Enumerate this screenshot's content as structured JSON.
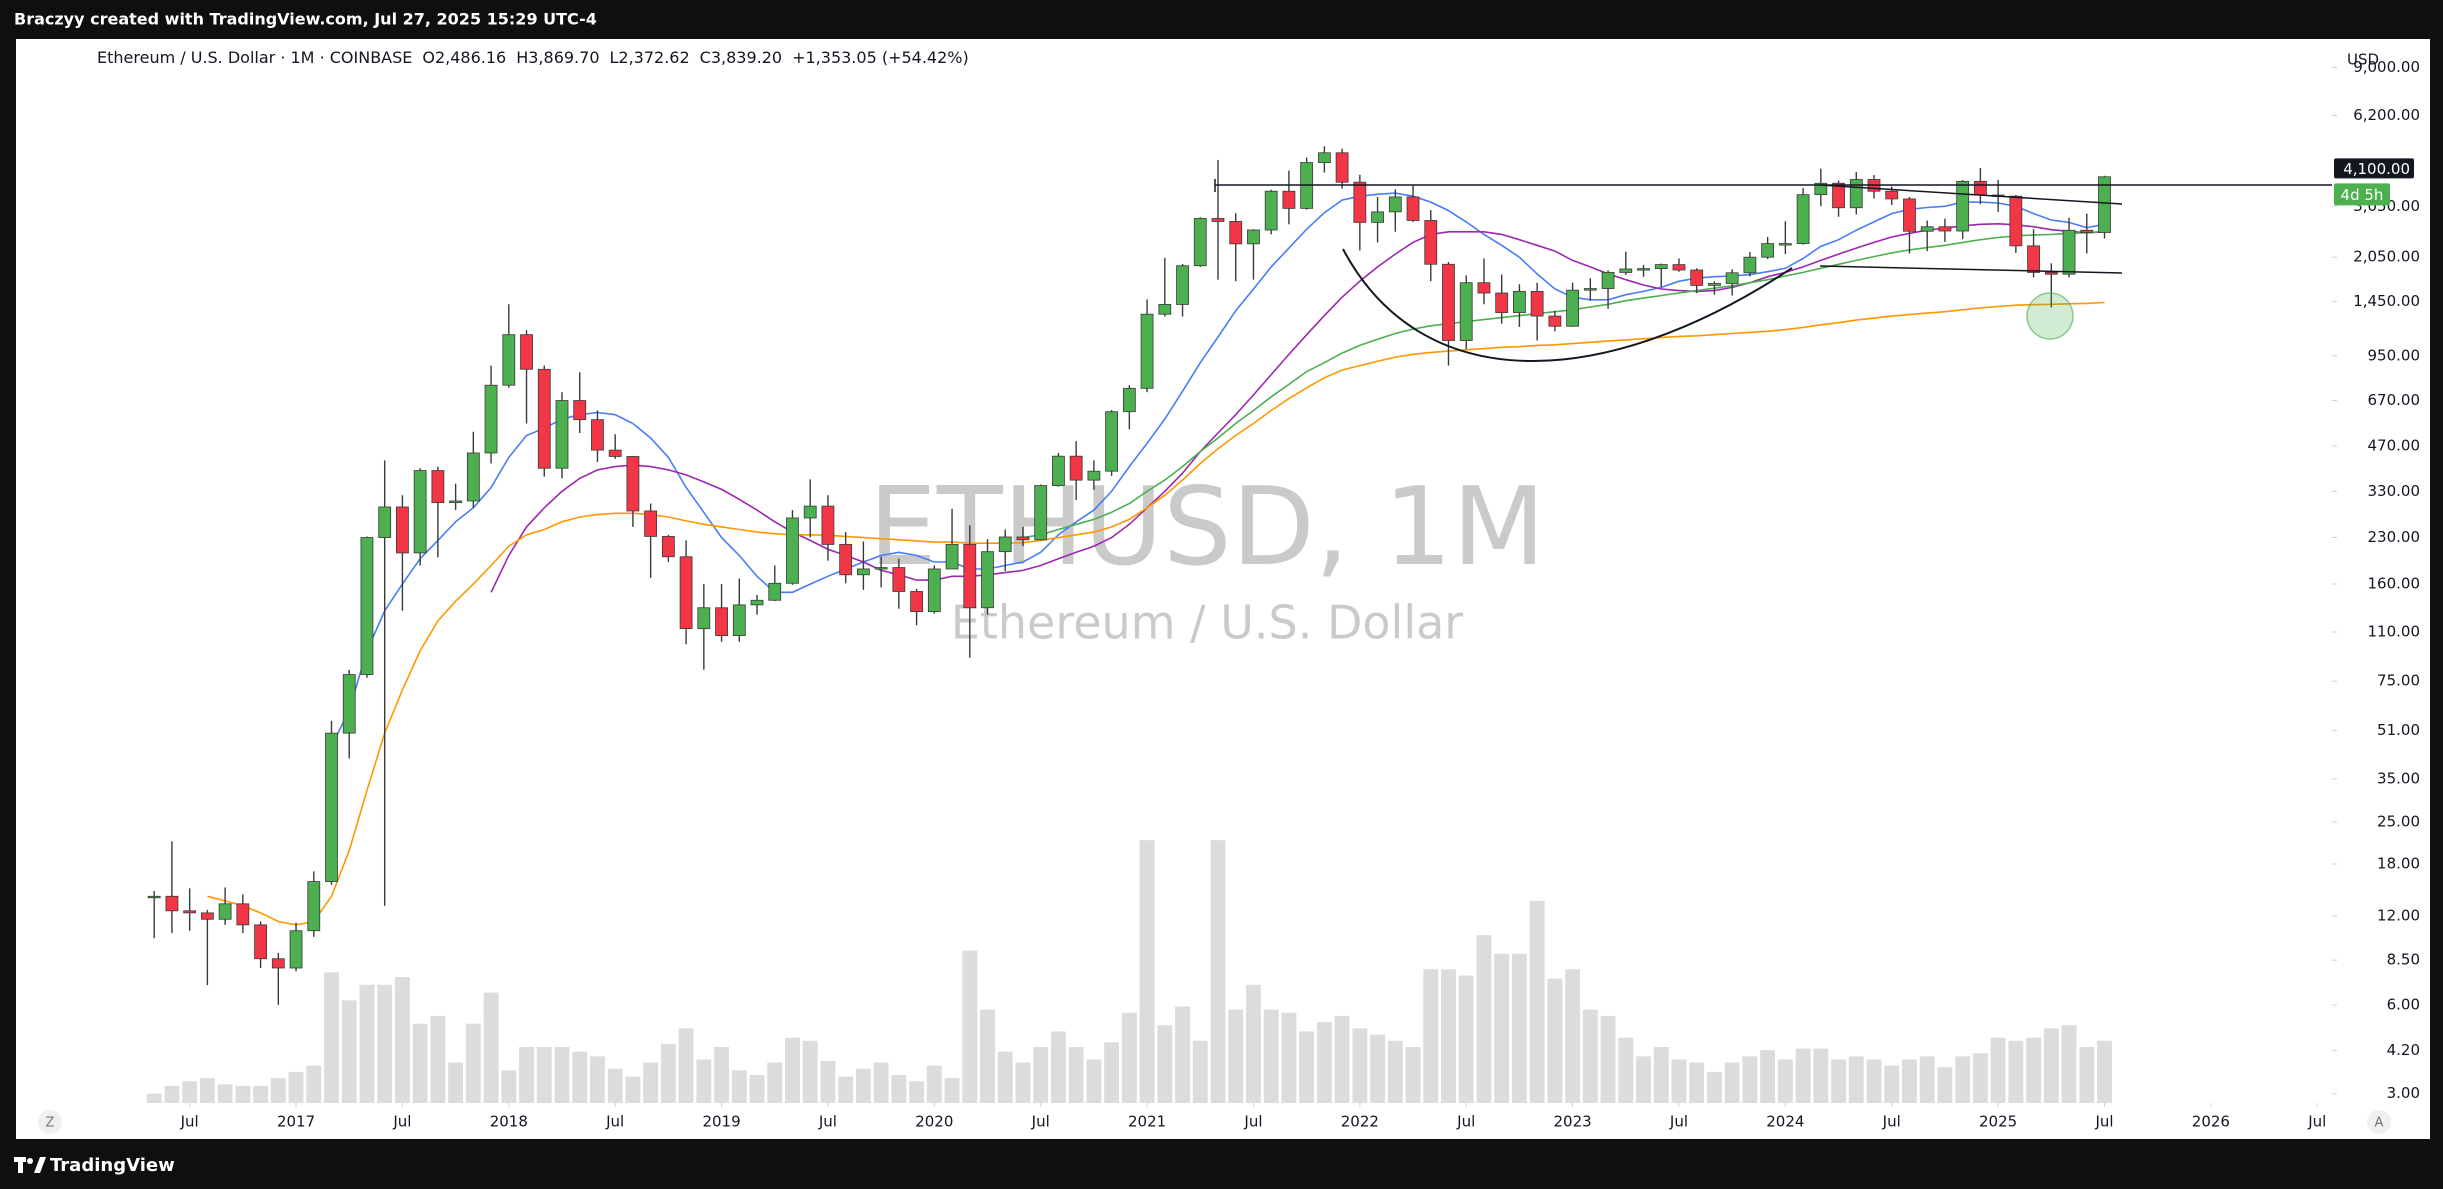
{
  "header": "Braczyy created with TradingView.com, Jul 27, 2025 15:29 UTC-4",
  "footer": "TradingView",
  "buttons": {
    "left": "Z",
    "right": "A"
  },
  "chart_data": {
    "type": "candlestick",
    "log": true,
    "currency": "USD",
    "legend": {
      "symbol": "Ethereum / U.S. Dollar · 1M · COINBASE",
      "open": "O2,486.16",
      "high": "H3,869.70",
      "low": "L2,372.62",
      "close": "C3,839.20",
      "change": "+1,353.05 (+54.42%)"
    },
    "watermark": {
      "symbol": "ETHUSD, 1M",
      "description": "Ethereum / U.S. Dollar"
    },
    "colors": {
      "up": "#4caf50",
      "down": "#f23645",
      "wick": "#3a3a3a",
      "volume": "#dcdcdc"
    },
    "x": [
      "2016-05",
      "2016-06",
      "2016-07",
      "2016-08",
      "2016-09",
      "2016-10",
      "2016-11",
      "2016-12",
      "2017-01",
      "2017-02",
      "2017-03",
      "2017-04",
      "2017-05",
      "2017-06",
      "2017-07",
      "2017-08",
      "2017-09",
      "2017-10",
      "2017-11",
      "2017-12",
      "2018-01",
      "2018-02",
      "2018-03",
      "2018-04",
      "2018-05",
      "2018-06",
      "2018-07",
      "2018-08",
      "2018-09",
      "2018-10",
      "2018-11",
      "2018-12",
      "2019-01",
      "2019-02",
      "2019-03",
      "2019-04",
      "2019-05",
      "2019-06",
      "2019-07",
      "2019-08",
      "2019-09",
      "2019-10",
      "2019-11",
      "2019-12",
      "2020-01",
      "2020-02",
      "2020-03",
      "2020-04",
      "2020-05",
      "2020-06",
      "2020-07",
      "2020-08",
      "2020-09",
      "2020-10",
      "2020-11",
      "2020-12",
      "2021-01",
      "2021-02",
      "2021-03",
      "2021-04",
      "2021-05",
      "2021-06",
      "2021-07",
      "2021-08",
      "2021-09",
      "2021-10",
      "2021-11",
      "2021-12",
      "2022-01",
      "2022-02",
      "2022-03",
      "2022-04",
      "2022-05",
      "2022-06",
      "2022-07",
      "2022-08",
      "2022-09",
      "2022-10",
      "2022-11",
      "2022-12",
      "2023-01",
      "2023-02",
      "2023-03",
      "2023-04",
      "2023-05",
      "2023-06",
      "2023-07",
      "2023-08",
      "2023-09",
      "2023-10",
      "2023-11",
      "2023-12",
      "2024-01",
      "2024-02",
      "2024-03",
      "2024-04",
      "2024-05",
      "2024-06",
      "2024-07",
      "2024-08",
      "2024-09",
      "2024-10",
      "2024-11",
      "2024-12",
      "2025-01",
      "2025-02",
      "2025-03",
      "2025-04",
      "2025-05",
      "2025-06",
      "2025-07"
    ],
    "open": [
      13.9,
      14.0,
      12.5,
      12.3,
      11.7,
      13.2,
      11.2,
      8.6,
      8.0,
      10.7,
      15.7,
      50,
      79,
      230,
      292,
      204,
      388,
      302,
      306,
      445,
      755,
      1120,
      855,
      395,
      670,
      577,
      455,
      433,
      283,
      232,
      198,
      113,
      133,
      107,
      136,
      141,
      161,
      268,
      294,
      218,
      172,
      180,
      182,
      151,
      129,
      180,
      218,
      133,
      206,
      231,
      226,
      345,
      434,
      360,
      386,
      614,
      737,
      1314,
      1418,
      1918,
      2773,
      2710,
      2275,
      2535,
      3430,
      3000,
      4290,
      4630,
      3680,
      2690,
      2920,
      3280,
      2730,
      1940,
      1070,
      1680,
      1550,
      1330,
      1570,
      1295,
      1196,
      1585,
      1605,
      1820,
      1870,
      1875,
      1935,
      1855,
      1645,
      1670,
      1815,
      2050,
      2280,
      2280,
      3340,
      3650,
      3015,
      3760,
      3430,
      3230,
      2510,
      2600,
      2515,
      3705,
      3330,
      3300,
      2240,
      1820,
      1795,
      2530,
      2486.16
    ],
    "high": [
      14.6,
      21.5,
      14.9,
      12.6,
      15.0,
      14.2,
      11.5,
      9.0,
      11.4,
      17.0,
      55,
      82,
      232,
      420,
      320,
      395,
      400,
      350,
      525,
      880,
      1420,
      1160,
      880,
      715,
      835,
      620,
      515,
      435,
      300,
      235,
      225,
      160,
      160,
      167,
      147,
      185,
      285,
      362,
      320,
      240,
      223,
      198,
      195,
      154,
      185,
      288,
      253,
      227,
      245,
      250,
      348,
      445,
      488,
      420,
      622,
      755,
      1475,
      2040,
      1945,
      2800,
      4380,
      2890,
      2550,
      3470,
      4030,
      4460,
      4870,
      4780,
      3900,
      3280,
      3480,
      3580,
      2960,
      1975,
      1780,
      2030,
      1790,
      1660,
      1680,
      1350,
      1680,
      1740,
      1850,
      2140,
      1930,
      1950,
      2030,
      1880,
      1700,
      1865,
      2135,
      2400,
      2715,
      3520,
      4090,
      3730,
      3980,
      3890,
      3560,
      3280,
      2730,
      2770,
      3740,
      4110,
      3745,
      3330,
      2550,
      1955,
      2790,
      2880,
      3869.7
    ],
    "low": [
      10.1,
      10.5,
      10.7,
      7.0,
      11.2,
      10.5,
      8.0,
      6.0,
      7.8,
      10.2,
      15.3,
      41,
      77,
      13,
      130,
      185,
      197,
      285,
      290,
      410,
      740,
      560,
      370,
      365,
      520,
      415,
      425,
      250,
      168,
      190,
      100,
      82,
      102,
      102,
      126,
      140,
      159,
      230,
      192,
      161,
      153,
      156,
      132,
      116,
      127,
      180,
      90,
      126,
      177,
      215,
      225,
      342,
      308,
      334,
      372,
      535,
      715,
      1290,
      1290,
      1900,
      1720,
      1700,
      1720,
      2450,
      2650,
      2970,
      3970,
      3500,
      2160,
      2300,
      2500,
      2700,
      1700,
      880,
      1000,
      1420,
      1220,
      1190,
      1070,
      1150,
      1190,
      1460,
      1370,
      1785,
      1760,
      1625,
      1830,
      1550,
      1530,
      1520,
      1765,
      2020,
      2100,
      2260,
      3050,
      2810,
      2860,
      3240,
      3080,
      2110,
      2150,
      2310,
      2360,
      3100,
      2920,
      2120,
      1750,
      1385,
      1750,
      2110,
      2372.62
    ],
    "close": [
      14.0,
      12.5,
      12.3,
      11.7,
      13.2,
      11.2,
      8.6,
      8.0,
      10.7,
      15.7,
      50,
      79,
      230,
      292,
      204,
      388,
      302,
      306,
      445,
      755,
      1120,
      855,
      395,
      670,
      577,
      455,
      433,
      283,
      232,
      198,
      113,
      133,
      107,
      136,
      141,
      161,
      268,
      294,
      218,
      172,
      180,
      182,
      151,
      129,
      180,
      218,
      133,
      206,
      231,
      226,
      345,
      434,
      360,
      386,
      614,
      737,
      1314,
      1418,
      1918,
      2773,
      2710,
      2275,
      2535,
      3430,
      3000,
      4290,
      4630,
      3680,
      2690,
      2920,
      3280,
      2730,
      1940,
      1070,
      1680,
      1550,
      1330,
      1570,
      1295,
      1196,
      1585,
      1605,
      1820,
      1870,
      1875,
      1935,
      1855,
      1645,
      1670,
      1815,
      2050,
      2280,
      2280,
      3340,
      3650,
      3015,
      3760,
      3430,
      3230,
      2510,
      2600,
      2515,
      3705,
      3330,
      3300,
      2240,
      1820,
      1795,
      2530,
      2485,
      3839.2
    ],
    "volume": [
      6,
      11,
      14,
      16,
      12,
      11,
      11,
      16,
      20,
      24,
      84,
      66,
      76,
      76,
      81,
      51,
      56,
      26,
      51,
      71,
      21,
      36,
      36,
      36,
      33,
      30,
      22,
      17,
      26,
      38,
      48,
      28,
      36,
      21,
      18,
      26,
      42,
      40,
      27,
      17,
      22,
      26,
      18,
      14,
      24,
      16,
      98,
      60,
      33,
      26,
      36,
      46,
      36,
      28,
      39,
      58,
      169,
      50,
      62,
      40,
      169,
      60,
      76,
      60,
      58,
      46,
      52,
      56,
      48,
      44,
      40,
      36,
      86,
      86,
      82,
      108,
      96,
      96,
      130,
      80,
      86,
      60,
      56,
      42,
      30,
      36,
      28,
      26,
      20,
      26,
      30,
      34,
      28,
      35,
      35,
      28,
      30,
      28,
      24,
      28,
      30,
      23,
      30,
      32,
      42,
      40,
      42,
      48,
      50,
      36,
      40
    ],
    "overlays": [
      {
        "color": "#4a7cf7",
        "values": [
          null,
          null,
          null,
          null,
          null,
          null,
          null,
          null,
          null,
          null,
          45,
          60,
          95,
          130,
          160,
          195,
          225,
          260,
          290,
          340,
          430,
          510,
          540,
          580,
          600,
          610,
          600,
          560,
          500,
          430,
          340,
          280,
          230,
          200,
          170,
          150,
          150,
          160,
          170,
          180,
          190,
          200,
          205,
          200,
          190,
          190,
          180,
          180,
          185,
          190,
          205,
          235,
          260,
          285,
          330,
          400,
          480,
          580,
          720,
          900,
          1100,
          1350,
          1600,
          1900,
          2200,
          2550,
          2900,
          3200,
          3300,
          3350,
          3380,
          3300,
          3150,
          2950,
          2700,
          2450,
          2250,
          2050,
          1800,
          1600,
          1500,
          1470,
          1470,
          1530,
          1570,
          1620,
          1700,
          1740,
          1760,
          1770,
          1790,
          1830,
          1880,
          2030,
          2230,
          2350,
          2530,
          2700,
          2880,
          2980,
          3020,
          3050,
          3150,
          3150,
          3130,
          3050,
          2880,
          2740,
          2690,
          2580,
          2650
        ]
      },
      {
        "color": "#9c27b0",
        "values": [
          null,
          null,
          null,
          null,
          null,
          null,
          null,
          null,
          null,
          null,
          null,
          null,
          null,
          null,
          null,
          null,
          null,
          null,
          null,
          150,
          200,
          250,
          290,
          330,
          365,
          390,
          400,
          405,
          400,
          390,
          375,
          355,
          335,
          310,
          285,
          260,
          240,
          225,
          210,
          200,
          190,
          178,
          172,
          165,
          165,
          170,
          170,
          172,
          175,
          178,
          185,
          195,
          205,
          215,
          230,
          255,
          290,
          330,
          380,
          450,
          520,
          600,
          700,
          820,
          960,
          1120,
          1300,
          1500,
          1700,
          1900,
          2100,
          2300,
          2450,
          2500,
          2500,
          2500,
          2450,
          2350,
          2250,
          2150,
          2000,
          1900,
          1800,
          1720,
          1650,
          1600,
          1580,
          1570,
          1580,
          1620,
          1680,
          1760,
          1820,
          1900,
          2000,
          2100,
          2200,
          2300,
          2400,
          2470,
          2530,
          2570,
          2620,
          2650,
          2660,
          2640,
          2600,
          2540,
          2510,
          2480,
          2500
        ]
      },
      {
        "color": "#4caf50",
        "values": [
          null,
          null,
          null,
          null,
          null,
          null,
          null,
          null,
          null,
          null,
          null,
          null,
          null,
          null,
          null,
          null,
          null,
          null,
          null,
          null,
          null,
          null,
          null,
          null,
          null,
          null,
          null,
          null,
          null,
          null,
          null,
          null,
          null,
          null,
          null,
          null,
          null,
          null,
          null,
          null,
          null,
          null,
          null,
          null,
          null,
          null,
          null,
          null,
          null,
          230,
          235,
          245,
          255,
          265,
          280,
          300,
          330,
          360,
          400,
          450,
          500,
          560,
          620,
          690,
          760,
          840,
          900,
          970,
          1030,
          1080,
          1130,
          1170,
          1200,
          1220,
          1240,
          1260,
          1280,
          1300,
          1320,
          1340,
          1360,
          1390,
          1420,
          1460,
          1490,
          1520,
          1550,
          1580,
          1610,
          1640,
          1680,
          1720,
          1770,
          1820,
          1880,
          1940,
          2000,
          2060,
          2120,
          2170,
          2210,
          2250,
          2300,
          2350,
          2390,
          2420,
          2440,
          2450,
          2470,
          2480,
          2510
        ]
      },
      {
        "color": "#ff9800",
        "values": [
          null,
          null,
          null,
          14,
          13.5,
          13,
          12.3,
          11.5,
          11.2,
          11.5,
          14,
          20,
          32,
          50,
          70,
          95,
          120,
          140,
          160,
          185,
          215,
          235,
          245,
          260,
          270,
          275,
          278,
          278,
          275,
          270,
          262,
          255,
          250,
          245,
          240,
          237,
          235,
          235,
          234,
          232,
          230,
          228,
          226,
          224,
          222,
          222,
          220,
          220,
          220,
          221,
          225,
          230,
          235,
          240,
          250,
          265,
          290,
          320,
          360,
          410,
          460,
          510,
          560,
          620,
          680,
          740,
          800,
          850,
          880,
          910,
          940,
          960,
          975,
          985,
          995,
          1005,
          1015,
          1020,
          1030,
          1035,
          1045,
          1055,
          1065,
          1075,
          1085,
          1095,
          1105,
          1110,
          1120,
          1130,
          1140,
          1150,
          1165,
          1185,
          1210,
          1230,
          1255,
          1275,
          1295,
          1310,
          1325,
          1340,
          1360,
          1380,
          1395,
          1410,
          1415,
          1420,
          1425,
          1430,
          1440
        ]
      }
    ],
    "ylim": [
      2.79,
      11250
    ],
    "yticks": [
      {
        "value": 9000,
        "label": "9,000.00"
      },
      {
        "value": 6200,
        "label": "6,200.00"
      },
      {
        "value": 3050,
        "label": "3,050.00"
      },
      {
        "value": 2050,
        "label": "2,050.00"
      },
      {
        "value": 1450,
        "label": "1,450.00"
      },
      {
        "value": 950,
        "label": "950.00"
      },
      {
        "value": 670,
        "label": "670.00"
      },
      {
        "value": 470,
        "label": "470.00"
      },
      {
        "value": 330,
        "label": "330.00"
      },
      {
        "value": 230,
        "label": "230.00"
      },
      {
        "value": 160,
        "label": "160.00"
      },
      {
        "value": 110,
        "label": "110.00"
      },
      {
        "value": 75,
        "label": "75.00"
      },
      {
        "value": 51,
        "label": "51.00"
      },
      {
        "value": 35,
        "label": "35.00"
      },
      {
        "value": 25,
        "label": "25.00"
      },
      {
        "value": 18,
        "label": "18.00"
      },
      {
        "value": 12,
        "label": "12.00"
      },
      {
        "value": 8.5,
        "label": "8.50"
      },
      {
        "value": 6,
        "label": "6.00"
      },
      {
        "value": 4.2,
        "label": "4.20"
      },
      {
        "value": 3,
        "label": "3.00"
      }
    ],
    "price_line": {
      "value": 4100,
      "label": "4,100.00"
    },
    "countdown": "4d 5h",
    "xticks": [
      {
        "value": "2016-07",
        "label": "Jul"
      },
      {
        "value": "2017-01",
        "label": "2017"
      },
      {
        "value": "2017-07",
        "label": "Jul"
      },
      {
        "value": "2018-01",
        "label": "2018"
      },
      {
        "value": "2018-07",
        "label": "Jul"
      },
      {
        "value": "2019-01",
        "label": "2019"
      },
      {
        "value": "2019-07",
        "label": "Jul"
      },
      {
        "value": "2020-01",
        "label": "2020"
      },
      {
        "value": "2020-07",
        "label": "Jul"
      },
      {
        "value": "2021-01",
        "label": "2021"
      },
      {
        "value": "2021-07",
        "label": "Jul"
      },
      {
        "value": "2022-01",
        "label": "2022"
      },
      {
        "value": "2022-07",
        "label": "Jul"
      },
      {
        "value": "2023-01",
        "label": "2023"
      },
      {
        "value": "2023-07",
        "label": "Jul"
      },
      {
        "value": "2024-01",
        "label": "2024"
      },
      {
        "value": "2024-07",
        "label": "Jul"
      },
      {
        "value": "2025-01",
        "label": "2025"
      },
      {
        "value": "2025-07",
        "label": "Jul"
      },
      {
        "value": "2026-01",
        "label": "2026"
      },
      {
        "value": "2026-07",
        "label": "Jul"
      }
    ]
  }
}
